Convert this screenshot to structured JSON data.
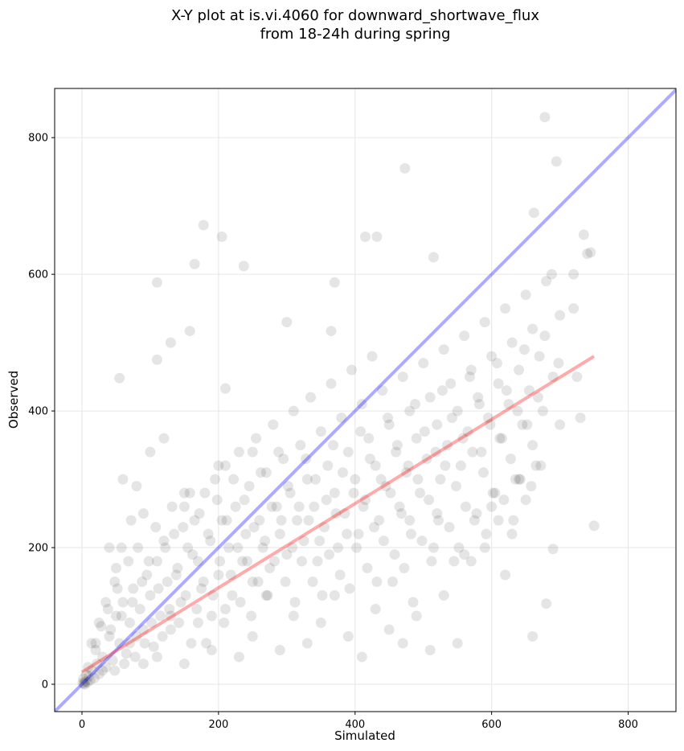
{
  "chart_data": {
    "type": "scatter",
    "title_line1": "X-Y plot at is.vi.4060 for downward_shortwave_flux",
    "title_line2": "from 18-24h during spring",
    "xlabel": "Simulated",
    "ylabel": "Observed",
    "xlim": [
      -40,
      870
    ],
    "ylim": [
      -40,
      872
    ],
    "xticks": [
      0,
      200,
      400,
      600,
      800
    ],
    "yticks": [
      0,
      200,
      400,
      600,
      800
    ],
    "xtick_labels": [
      "0",
      "200",
      "400",
      "600",
      "800"
    ],
    "ytick_labels": [
      "0",
      "200",
      "400",
      "600",
      "800"
    ],
    "grid": true,
    "point_color": "#000000",
    "point_alpha": 0.1,
    "one_to_one_line": {
      "x": [
        -40,
        870
      ],
      "y": [
        -40,
        870
      ],
      "color": "#0000ff"
    },
    "fit_line": {
      "x": [
        0,
        750
      ],
      "y": [
        18,
        480
      ],
      "color": "#ff0000"
    },
    "points": [
      [
        1,
        2
      ],
      [
        3,
        1
      ],
      [
        5,
        4
      ],
      [
        2,
        8
      ],
      [
        8,
        3
      ],
      [
        10,
        12
      ],
      [
        4,
        0
      ],
      [
        12,
        6
      ],
      [
        15,
        20
      ],
      [
        6,
        14
      ],
      [
        18,
        9
      ],
      [
        22,
        30
      ],
      [
        25,
        15
      ],
      [
        9,
        25
      ],
      [
        30,
        40
      ],
      [
        20,
        50
      ],
      [
        35,
        25
      ],
      [
        14,
        60
      ],
      [
        40,
        70
      ],
      [
        28,
        85
      ],
      [
        45,
        35
      ],
      [
        50,
        100
      ],
      [
        55,
        60
      ],
      [
        60,
        120
      ],
      [
        38,
        110
      ],
      [
        65,
        45
      ],
      [
        70,
        90
      ],
      [
        75,
        140
      ],
      [
        48,
        150
      ],
      [
        80,
        70
      ],
      [
        85,
        110
      ],
      [
        90,
        30
      ],
      [
        95,
        160
      ],
      [
        100,
        130
      ],
      [
        58,
        200
      ],
      [
        105,
        55
      ],
      [
        110,
        180
      ],
      [
        115,
        100
      ],
      [
        120,
        210
      ],
      [
        72,
        240
      ],
      [
        125,
        150
      ],
      [
        130,
        80
      ],
      [
        135,
        220
      ],
      [
        140,
        170
      ],
      [
        145,
        120
      ],
      [
        150,
        260
      ],
      [
        155,
        200
      ],
      [
        160,
        60
      ],
      [
        165,
        240
      ],
      [
        170,
        180
      ],
      [
        175,
        140
      ],
      [
        180,
        280
      ],
      [
        185,
        220
      ],
      [
        190,
        100
      ],
      [
        195,
        300
      ],
      [
        200,
        160
      ],
      [
        205,
        240
      ],
      [
        210,
        320
      ],
      [
        215,
        200
      ],
      [
        220,
        130
      ],
      [
        225,
        260
      ],
      [
        230,
        340
      ],
      [
        235,
        180
      ],
      [
        240,
        220
      ],
      [
        245,
        290
      ],
      [
        250,
        150
      ],
      [
        255,
        360
      ],
      [
        260,
        240
      ],
      [
        265,
        200
      ],
      [
        270,
        310
      ],
      [
        275,
        170
      ],
      [
        280,
        380
      ],
      [
        285,
        260
      ],
      [
        290,
        220
      ],
      [
        295,
        330
      ],
      [
        300,
        190
      ],
      [
        305,
        280
      ],
      [
        310,
        400
      ],
      [
        315,
        240
      ],
      [
        320,
        350
      ],
      [
        325,
        210
      ],
      [
        330,
        300
      ],
      [
        335,
        420
      ],
      [
        340,
        260
      ],
      [
        345,
        180
      ],
      [
        350,
        370
      ],
      [
        355,
        230
      ],
      [
        360,
        320
      ],
      [
        365,
        440
      ],
      [
        370,
        280
      ],
      [
        375,
        200
      ],
      [
        380,
        390
      ],
      [
        385,
        250
      ],
      [
        390,
        340
      ],
      [
        395,
        460
      ],
      [
        400,
        300
      ],
      [
        405,
        220
      ],
      [
        410,
        410
      ],
      [
        415,
        270
      ],
      [
        420,
        360
      ],
      [
        425,
        480
      ],
      [
        430,
        320
      ],
      [
        435,
        240
      ],
      [
        440,
        430
      ],
      [
        445,
        290
      ],
      [
        450,
        380
      ],
      [
        455,
        150
      ],
      [
        460,
        340
      ],
      [
        465,
        260
      ],
      [
        470,
        450
      ],
      [
        475,
        310
      ],
      [
        480,
        400
      ],
      [
        485,
        120
      ],
      [
        490,
        360
      ],
      [
        495,
        280
      ],
      [
        500,
        470
      ],
      [
        505,
        330
      ],
      [
        510,
        420
      ],
      [
        515,
        200
      ],
      [
        520,
        380
      ],
      [
        525,
        300
      ],
      [
        530,
        490
      ],
      [
        535,
        350
      ],
      [
        540,
        440
      ],
      [
        545,
        180
      ],
      [
        550,
        400
      ],
      [
        555,
        320
      ],
      [
        560,
        510
      ],
      [
        565,
        370
      ],
      [
        570,
        460
      ],
      [
        575,
        240
      ],
      [
        580,
        420
      ],
      [
        585,
        340
      ],
      [
        590,
        530
      ],
      [
        595,
        390
      ],
      [
        600,
        480
      ],
      [
        605,
        280
      ],
      [
        610,
        440
      ],
      [
        615,
        360
      ],
      [
        620,
        550
      ],
      [
        625,
        410
      ],
      [
        630,
        500
      ],
      [
        635,
        300
      ],
      [
        640,
        460
      ],
      [
        645,
        380
      ],
      [
        650,
        570
      ],
      [
        655,
        430
      ],
      [
        660,
        520
      ],
      [
        665,
        320
      ],
      [
        670,
        480
      ],
      [
        675,
        400
      ],
      [
        680,
        590
      ],
      [
        690,
        450
      ],
      [
        700,
        540
      ],
      [
        720,
        600
      ],
      [
        730,
        390
      ],
      [
        740,
        630
      ],
      [
        750,
        232
      ],
      [
        40,
        200
      ],
      [
        60,
        300
      ],
      [
        80,
        290
      ],
      [
        100,
        340
      ],
      [
        120,
        360
      ],
      [
        130,
        500
      ],
      [
        110,
        475
      ],
      [
        165,
        615
      ],
      [
        178,
        672
      ],
      [
        205,
        655
      ],
      [
        237,
        612
      ],
      [
        110,
        588
      ],
      [
        158,
        517
      ],
      [
        300,
        530
      ],
      [
        365,
        517
      ],
      [
        370,
        588
      ],
      [
        415,
        655
      ],
      [
        432,
        655
      ],
      [
        473,
        755
      ],
      [
        515,
        625
      ],
      [
        695,
        765
      ],
      [
        678,
        830
      ],
      [
        662,
        690
      ],
      [
        55,
        448
      ],
      [
        210,
        433
      ],
      [
        200,
        320
      ],
      [
        250,
        340
      ],
      [
        150,
        280
      ],
      [
        90,
        250
      ],
      [
        50,
        170
      ],
      [
        70,
        60
      ],
      [
        90,
        80
      ],
      [
        110,
        40
      ],
      [
        130,
        100
      ],
      [
        150,
        30
      ],
      [
        170,
        90
      ],
      [
        190,
        50
      ],
      [
        210,
        110
      ],
      [
        230,
        40
      ],
      [
        250,
        70
      ],
      [
        270,
        130
      ],
      [
        290,
        50
      ],
      [
        310,
        100
      ],
      [
        330,
        60
      ],
      [
        350,
        90
      ],
      [
        370,
        130
      ],
      [
        390,
        70
      ],
      [
        410,
        40
      ],
      [
        430,
        110
      ],
      [
        450,
        80
      ],
      [
        470,
        60
      ],
      [
        490,
        100
      ],
      [
        510,
        50
      ],
      [
        530,
        130
      ],
      [
        550,
        60
      ],
      [
        570,
        180
      ],
      [
        590,
        200
      ],
      [
        610,
        240
      ],
      [
        630,
        220
      ],
      [
        650,
        270
      ],
      [
        660,
        70
      ],
      [
        680,
        118
      ],
      [
        690,
        198
      ],
      [
        480,
        240
      ],
      [
        520,
        250
      ],
      [
        560,
        190
      ],
      [
        600,
        260
      ],
      [
        620,
        160
      ],
      [
        640,
        300
      ],
      [
        660,
        350
      ],
      [
        700,
        380
      ],
      [
        720,
        550
      ],
      [
        725,
        450
      ],
      [
        735,
        658
      ],
      [
        745,
        632
      ],
      [
        20,
        60
      ],
      [
        25,
        90
      ],
      [
        30,
        20
      ],
      [
        35,
        120
      ],
      [
        42,
        80
      ],
      [
        48,
        20
      ],
      [
        52,
        140
      ],
      [
        58,
        100
      ],
      [
        62,
        30
      ],
      [
        68,
        180
      ],
      [
        74,
        120
      ],
      [
        78,
        40
      ],
      [
        82,
        200
      ],
      [
        88,
        150
      ],
      [
        92,
        60
      ],
      [
        98,
        180
      ],
      [
        102,
        90
      ],
      [
        108,
        230
      ],
      [
        112,
        140
      ],
      [
        118,
        70
      ],
      [
        122,
        200
      ],
      [
        128,
        110
      ],
      [
        132,
        260
      ],
      [
        138,
        160
      ],
      [
        142,
        90
      ],
      [
        148,
        230
      ],
      [
        152,
        130
      ],
      [
        158,
        280
      ],
      [
        162,
        190
      ],
      [
        168,
        110
      ],
      [
        172,
        250
      ],
      [
        178,
        150
      ],
      [
        182,
        60
      ],
      [
        188,
        210
      ],
      [
        192,
        130
      ],
      [
        198,
        270
      ],
      [
        202,
        180
      ],
      [
        208,
        90
      ],
      [
        212,
        240
      ],
      [
        218,
        160
      ],
      [
        222,
        300
      ],
      [
        228,
        200
      ],
      [
        232,
        120
      ],
      [
        238,
        270
      ],
      [
        242,
        180
      ],
      [
        248,
        100
      ],
      [
        252,
        230
      ],
      [
        258,
        150
      ],
      [
        262,
        310
      ],
      [
        268,
        210
      ],
      [
        272,
        130
      ],
      [
        278,
        260
      ],
      [
        282,
        180
      ],
      [
        288,
        340
      ],
      [
        292,
        240
      ],
      [
        298,
        150
      ],
      [
        302,
        290
      ],
      [
        308,
        200
      ],
      [
        312,
        120
      ],
      [
        318,
        260
      ],
      [
        322,
        180
      ],
      [
        328,
        330
      ],
      [
        332,
        240
      ],
      [
        338,
        150
      ],
      [
        342,
        300
      ],
      [
        348,
        210
      ],
      [
        352,
        130
      ],
      [
        358,
        270
      ],
      [
        362,
        190
      ],
      [
        368,
        350
      ],
      [
        372,
        250
      ],
      [
        378,
        160
      ],
      [
        382,
        310
      ],
      [
        388,
        220
      ],
      [
        392,
        140
      ],
      [
        398,
        280
      ],
      [
        402,
        200
      ],
      [
        408,
        370
      ],
      [
        412,
        260
      ],
      [
        418,
        170
      ],
      [
        422,
        330
      ],
      [
        428,
        230
      ],
      [
        432,
        150
      ],
      [
        438,
        300
      ],
      [
        442,
        210
      ],
      [
        448,
        390
      ],
      [
        452,
        280
      ],
      [
        458,
        190
      ],
      [
        462,
        350
      ],
      [
        468,
        250
      ],
      [
        472,
        170
      ],
      [
        478,
        320
      ],
      [
        482,
        220
      ],
      [
        488,
        410
      ],
      [
        492,
        300
      ],
      [
        498,
        210
      ],
      [
        502,
        370
      ],
      [
        508,
        270
      ],
      [
        512,
        180
      ],
      [
        518,
        340
      ],
      [
        522,
        240
      ],
      [
        528,
        430
      ],
      [
        532,
        320
      ],
      [
        538,
        230
      ],
      [
        542,
        390
      ],
      [
        548,
        290
      ],
      [
        552,
        200
      ],
      [
        558,
        360
      ],
      [
        562,
        260
      ],
      [
        568,
        450
      ],
      [
        572,
        340
      ],
      [
        578,
        250
      ],
      [
        582,
        410
      ],
      [
        588,
        310
      ],
      [
        592,
        220
      ],
      [
        598,
        380
      ],
      [
        602,
        280
      ],
      [
        608,
        470
      ],
      [
        612,
        360
      ],
      [
        618,
        270
      ],
      [
        622,
        430
      ],
      [
        628,
        330
      ],
      [
        632,
        240
      ],
      [
        638,
        400
      ],
      [
        642,
        300
      ],
      [
        648,
        490
      ],
      [
        652,
        380
      ],
      [
        658,
        290
      ],
      [
        668,
        420
      ],
      [
        672,
        320
      ],
      [
        678,
        510
      ],
      [
        688,
        600
      ],
      [
        698,
        470
      ]
    ]
  }
}
